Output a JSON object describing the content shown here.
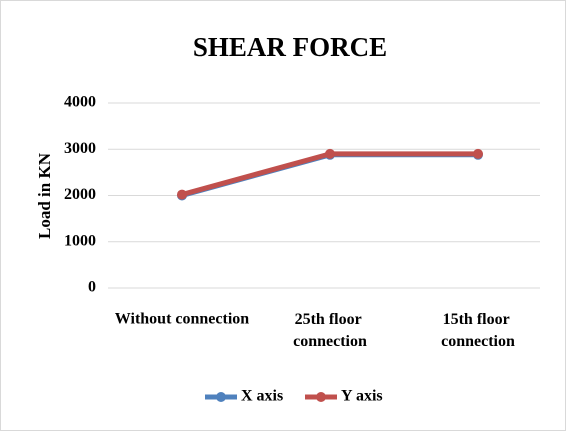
{
  "chart_data": {
    "type": "line",
    "title": "SHEAR FORCE",
    "y_label": "Load in KN",
    "categories": [
      "Without connection",
      "25th floor connection",
      "15th floor connection"
    ],
    "series": [
      {
        "name": "X axis",
        "color": "#4f81bd",
        "values": [
          2000,
          2880,
          2880
        ]
      },
      {
        "name": "Y axis",
        "color": "#c0504d",
        "values": [
          2020,
          2900,
          2900
        ]
      }
    ],
    "ylim": [
      0,
      4000
    ],
    "yticks": [
      0,
      1000,
      2000,
      3000,
      4000
    ],
    "grid": true,
    "legend": "bottom"
  }
}
